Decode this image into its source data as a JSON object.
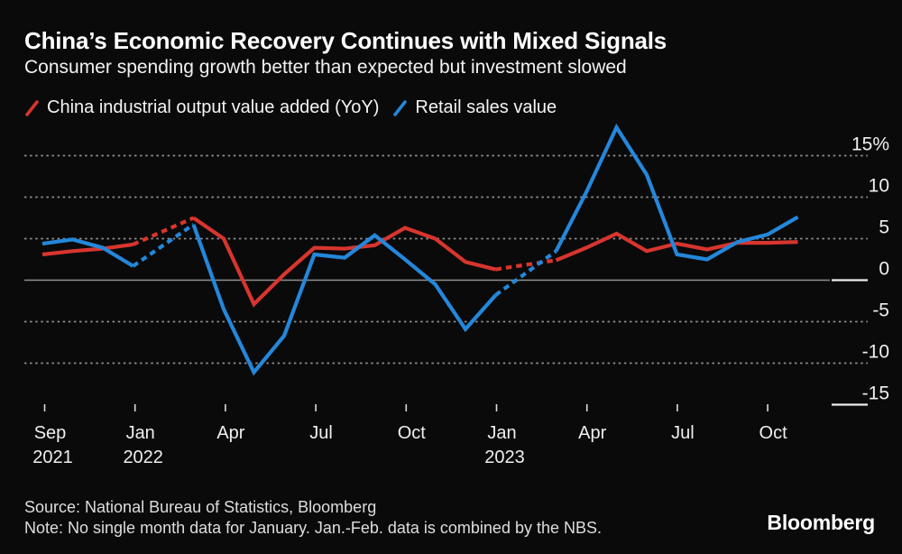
{
  "header": {
    "title": "China’s Economic Recovery Continues with Mixed Signals",
    "subtitle": "Consumer spending growth better than expected but investment slowed"
  },
  "legend": [
    {
      "label": "China industrial output value added (YoY)",
      "color": "#d7352e"
    },
    {
      "label": "Retail sales value",
      "color": "#2487db"
    }
  ],
  "footer": {
    "source": "Source: National Bureau of Statistics, Bloomberg",
    "note": "Note: No single month data for January. Jan.-Feb. data is combined by the NBS.",
    "brand": "Bloomberg"
  },
  "chart_data": {
    "type": "line",
    "title": "China’s Economic Recovery Continues with Mixed Signals",
    "subtitle": "Consumer spending growth better than expected but investment slowed",
    "unit": "percent, year over year",
    "categories": [
      "Sep 2021",
      "Oct 2021",
      "Nov 2021",
      "Dec 2021",
      "Jan 2022",
      "Feb 2022",
      "Mar 2022",
      "Apr 2022",
      "May 2022",
      "Jun 2022",
      "Jul 2022",
      "Aug 2022",
      "Sep 2022",
      "Oct 2022",
      "Nov 2022",
      "Dec 2022",
      "Jan 2023",
      "Feb 2023",
      "Mar 2023",
      "Apr 2023",
      "May 2023",
      "Jun 2023",
      "Jul 2023",
      "Aug 2023",
      "Sep 2023",
      "Oct 2023"
    ],
    "series": [
      {
        "name": "China industrial output value added (YoY)",
        "color": "#d7352e",
        "values": [
          3.1,
          3.5,
          3.8,
          4.3,
          null,
          7.5,
          5.0,
          -2.9,
          0.7,
          3.9,
          3.8,
          4.2,
          6.3,
          5.0,
          2.2,
          1.3,
          null,
          2.4,
          3.9,
          5.6,
          3.5,
          4.4,
          3.7,
          4.5,
          4.5,
          4.6
        ]
      },
      {
        "name": "Retail sales value",
        "color": "#2487db",
        "values": [
          4.4,
          4.9,
          3.9,
          1.7,
          null,
          6.7,
          -3.5,
          -11.1,
          -6.7,
          3.1,
          2.7,
          5.4,
          2.5,
          -0.5,
          -5.9,
          -1.8,
          null,
          3.5,
          10.6,
          18.4,
          12.7,
          3.1,
          2.5,
          4.6,
          5.5,
          7.6
        ]
      }
    ],
    "gap_note": "January values are null; Jan.-Feb. combined by NBS, rendered as dashed bridge segments",
    "y_axis": {
      "side": "right",
      "ticks": [
        15,
        10,
        5,
        0,
        -5,
        -10,
        -15
      ],
      "tick_labels": [
        "15%",
        "10",
        "5",
        "0",
        "-5",
        "-10",
        "-15"
      ],
      "ylim": [
        -16.5,
        19.5
      ],
      "grid": "dotted",
      "zero_line": "solid"
    },
    "x_axis": {
      "ticks": [
        {
          "month": "Sep",
          "year": "2021"
        },
        {
          "month": "Jan",
          "year": "2022"
        },
        {
          "month": "Apr"
        },
        {
          "month": "Jul"
        },
        {
          "month": "Oct"
        },
        {
          "month": "Jan",
          "year": "2023"
        },
        {
          "month": "Apr"
        },
        {
          "month": "Jul"
        },
        {
          "month": "Oct"
        }
      ]
    },
    "legend_position": "top"
  }
}
